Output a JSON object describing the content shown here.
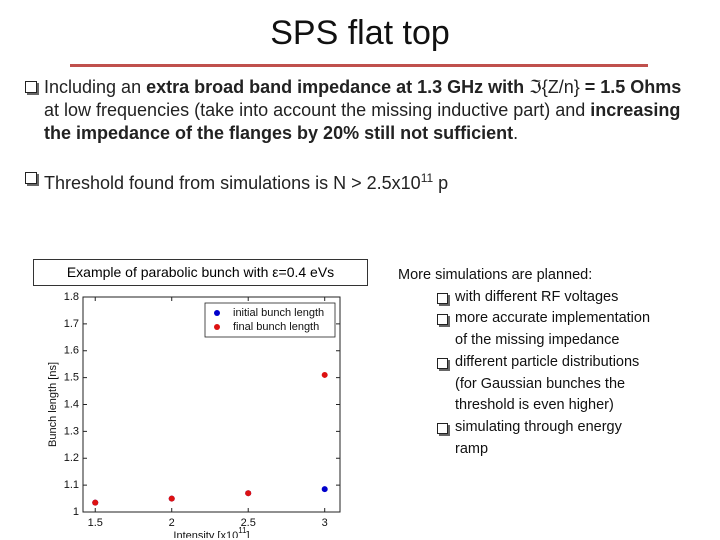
{
  "title": "SPS flat top",
  "bullets": [
    {
      "segments": [
        {
          "text": "Including an ",
          "bold": false
        },
        {
          "text": "extra broad band impedance at 1.3 GHz with",
          "bold": true
        },
        {
          "text": " ℑ{Z/n}",
          "bold": false
        },
        {
          "text": " = 1.5 Ohms",
          "bold": true
        },
        {
          "text": " at low frequencies (take into account the missing inductive part) and ",
          "bold": false
        },
        {
          "text": "increasing the impedance of the flanges by 20% still not sufficient",
          "bold": true
        },
        {
          "text": ".",
          "bold": false
        }
      ]
    },
    {
      "segments": [
        {
          "text": "Threshold found from simulations is N > 2.5x10",
          "bold": false
        },
        {
          "text": "11",
          "bold": false,
          "sup": true
        },
        {
          "text": " p",
          "bold": false
        }
      ]
    }
  ],
  "caption": "Example of parabolic bunch with ε=0.4 eVs",
  "planned": {
    "heading": "More simulations are planned:",
    "items": [
      "with different RF voltages",
      "more accurate implementation of the missing impedance",
      "different particle distributions (for Gaussian bunches the threshold is even higher)",
      "simulating through energy ramp"
    ]
  },
  "chart_data": {
    "type": "scatter",
    "xlabel": "Intensity [x10",
    "xlabel_sup": "11",
    "xlabel_end": "]",
    "ylabel": "Bunch length [ns]",
    "x": [
      1.5,
      2,
      2.5,
      3
    ],
    "series": [
      {
        "name": "initial bunch length",
        "color": "#0000cc",
        "values": [
          1.035,
          1.05,
          1.07,
          1.085
        ]
      },
      {
        "name": "final bunch length",
        "color": "#dd1111",
        "values": [
          1.035,
          1.05,
          1.07,
          1.51
        ]
      }
    ],
    "xlim": [
      1.42,
      3.1
    ],
    "ylim": [
      1,
      1.8
    ],
    "xticks": [
      1.5,
      2,
      2.5,
      3
    ],
    "yticks": [
      1,
      1.1,
      1.2,
      1.3,
      1.4,
      1.5,
      1.6,
      1.7,
      1.8
    ],
    "legend": "north east",
    "grid": false
  }
}
